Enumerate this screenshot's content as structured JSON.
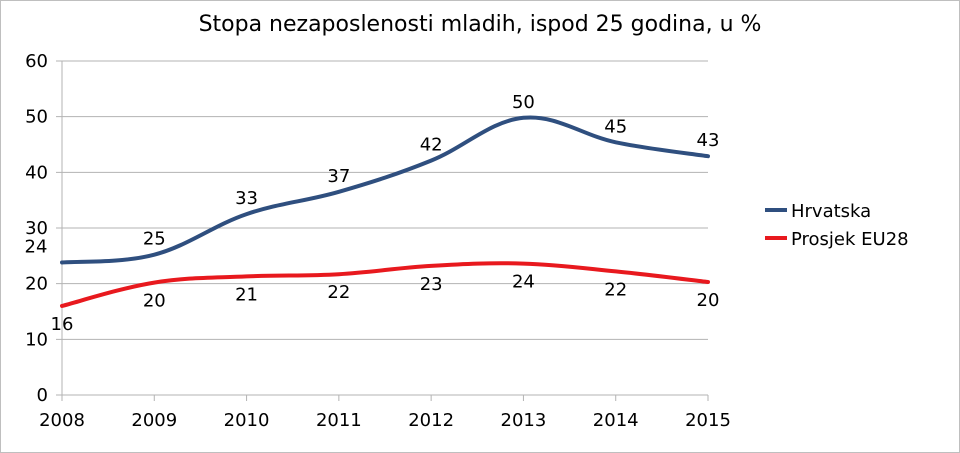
{
  "chart_data": {
    "type": "line",
    "title": "Stopa nezaposlenosti mladih, ispod 25 godina, u %",
    "xlabel": "",
    "ylabel": "",
    "x": [
      "2008",
      "2009",
      "2010",
      "2011",
      "2012",
      "2013",
      "2014",
      "2015"
    ],
    "ylim": [
      0,
      60
    ],
    "yticks": [
      "0",
      "10",
      "20",
      "30",
      "40",
      "50",
      "60"
    ],
    "grid": true,
    "legend_position": "right",
    "series": [
      {
        "name": "Hrvatska",
        "color": "#2f4f7f",
        "values": [
          23.8,
          25.2,
          32.5,
          36.5,
          42.1,
          49.8,
          45.4,
          42.9
        ],
        "labels": [
          "24",
          "25",
          "33",
          "37",
          "42",
          "50",
          "45",
          "43"
        ]
      },
      {
        "name": "Prosjek EU28",
        "color": "#e8191e",
        "values": [
          16.0,
          20.2,
          21.3,
          21.7,
          23.2,
          23.6,
          22.2,
          20.3
        ],
        "labels": [
          "16",
          "20",
          "21",
          "22",
          "23",
          "24",
          "22",
          "20"
        ]
      }
    ]
  }
}
